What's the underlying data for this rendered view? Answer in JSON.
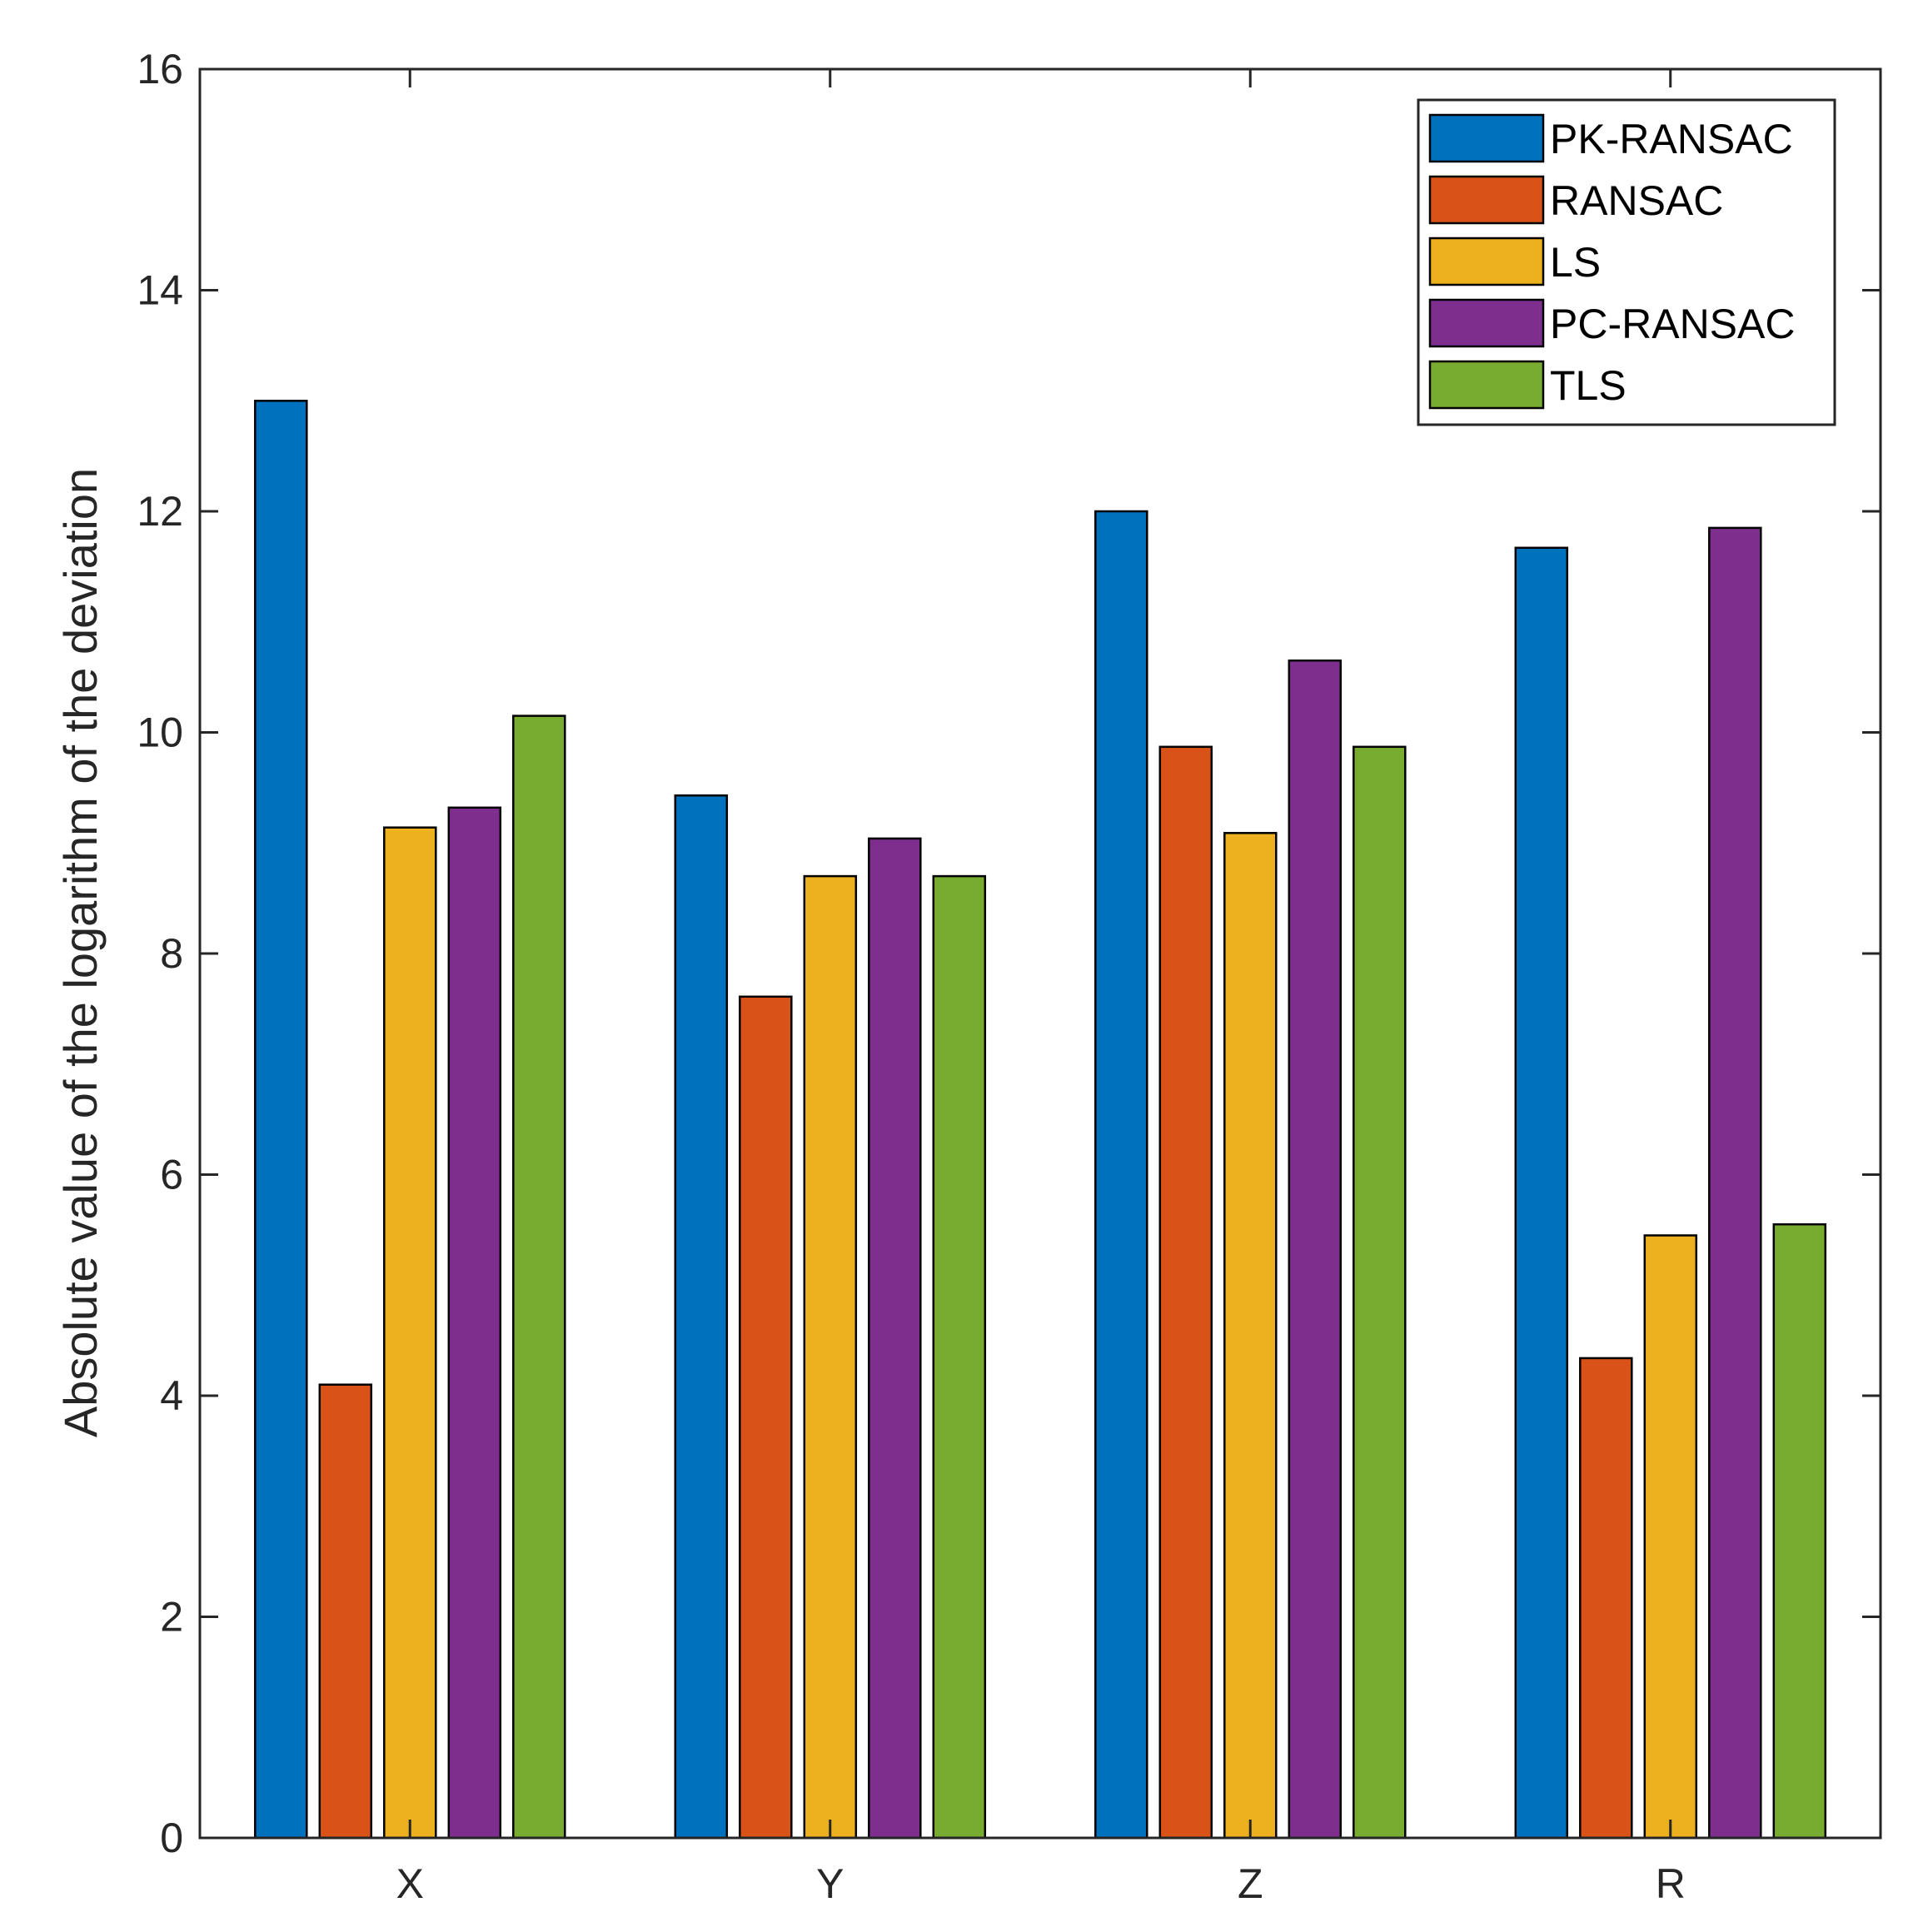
{
  "chart_data": {
    "type": "bar",
    "title": "",
    "xlabel": "",
    "ylabel": "Absolute value of the logarithm of the deviation",
    "categories": [
      "X",
      "Y",
      "Z",
      "R"
    ],
    "ylim": [
      0,
      16
    ],
    "yticks": [
      0,
      2,
      4,
      6,
      8,
      10,
      12,
      14,
      16
    ],
    "grid": false,
    "legend_position": "top-right",
    "series": [
      {
        "name": "PK-RANSAC",
        "color": "#0072BD",
        "values": [
          13.0,
          9.43,
          12.0,
          11.67
        ]
      },
      {
        "name": "RANSAC",
        "color": "#D95319",
        "values": [
          4.1,
          7.61,
          9.87,
          4.34
        ]
      },
      {
        "name": "LS",
        "color": "#EDB120",
        "values": [
          9.14,
          8.7,
          9.09,
          5.45
        ]
      },
      {
        "name": "PC-RANSAC",
        "color": "#7E2F8E",
        "values": [
          9.32,
          9.04,
          10.65,
          11.85
        ]
      },
      {
        "name": "TLS",
        "color": "#77AC30",
        "values": [
          10.15,
          8.7,
          9.87,
          5.55
        ]
      }
    ]
  }
}
